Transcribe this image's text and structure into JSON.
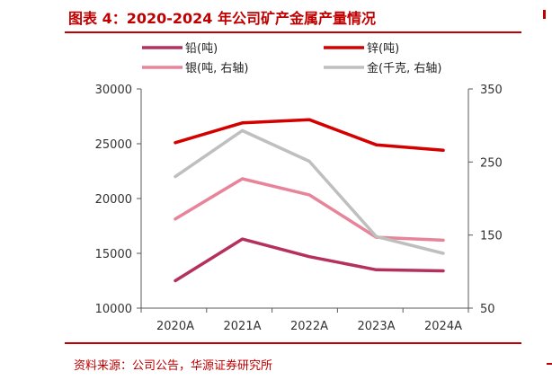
{
  "header": {
    "title": "图表 4：2020-2024 年公司矿产金属产量情况"
  },
  "footer": {
    "source": "资料来源：公司公告，华源证券研究所"
  },
  "colors": {
    "accent": "#C00000"
  },
  "chart_data": {
    "type": "line",
    "categories": [
      "2020A",
      "2021A",
      "2022A",
      "2023A",
      "2024A"
    ],
    "y_left": {
      "ticks": [
        "30000",
        "25000",
        "20000",
        "15000",
        "10000"
      ],
      "min": 10000,
      "max": 30000
    },
    "y_right": {
      "ticks": [
        "350",
        "250",
        "150",
        "50"
      ],
      "min": 50,
      "max": 350
    },
    "grid": false,
    "legend_position": "top",
    "series": [
      {
        "name": "铅(吨)",
        "axis": "left",
        "color": "#B5305E",
        "values": [
          12500,
          16300,
          14700,
          13500,
          13400
        ]
      },
      {
        "name": "锌(吨)",
        "axis": "left",
        "color": "#D40000",
        "values": [
          25100,
          26900,
          27200,
          24900,
          24400
        ]
      },
      {
        "name": "银(吨, 右轴)",
        "axis": "right",
        "color": "#E8849A",
        "values": [
          172,
          227,
          205,
          147,
          143
        ]
      },
      {
        "name": "金(千克, 右轴)",
        "axis": "right",
        "color": "#BFBFBF",
        "values": [
          230,
          293,
          251,
          148,
          125
        ]
      }
    ]
  }
}
